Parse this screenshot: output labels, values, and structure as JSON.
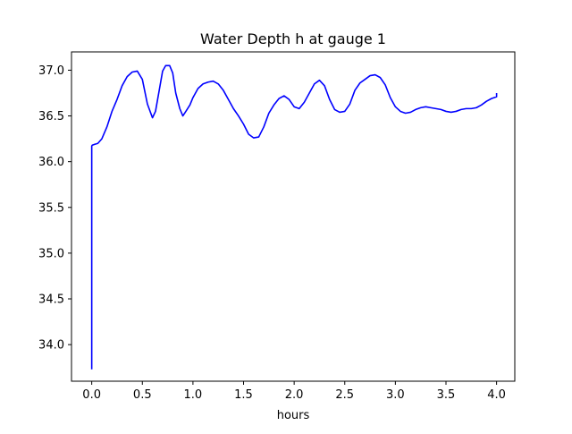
{
  "chart_data": {
    "type": "line",
    "title": "Water Depth h at gauge 1",
    "xlabel": "hours",
    "ylabel": "",
    "xlim": [
      -0.2,
      4.18
    ],
    "ylim": [
      33.6,
      37.2
    ],
    "xticks": [
      "0.0",
      "0.5",
      "1.0",
      "1.5",
      "2.0",
      "2.5",
      "3.0",
      "3.5",
      "4.0"
    ],
    "yticks": [
      "34.0",
      "34.5",
      "35.0",
      "35.5",
      "36.0",
      "36.5",
      "37.0"
    ],
    "grid": false,
    "series": [
      {
        "name": "",
        "color": "#0000ff",
        "x": [
          0.0,
          0.0,
          0.0,
          0.005,
          0.03,
          0.06,
          0.1,
          0.15,
          0.2,
          0.25,
          0.3,
          0.35,
          0.4,
          0.45,
          0.5,
          0.55,
          0.6,
          0.63,
          0.67,
          0.7,
          0.73,
          0.77,
          0.8,
          0.83,
          0.87,
          0.9,
          0.93,
          0.97,
          1.0,
          1.05,
          1.1,
          1.15,
          1.2,
          1.25,
          1.3,
          1.35,
          1.4,
          1.45,
          1.5,
          1.55,
          1.6,
          1.65,
          1.7,
          1.75,
          1.8,
          1.85,
          1.9,
          1.95,
          2.0,
          2.05,
          2.1,
          2.15,
          2.2,
          2.25,
          2.3,
          2.35,
          2.4,
          2.45,
          2.5,
          2.55,
          2.6,
          2.65,
          2.7,
          2.75,
          2.8,
          2.85,
          2.9,
          2.95,
          3.0,
          3.05,
          3.1,
          3.15,
          3.2,
          3.25,
          3.3,
          3.35,
          3.4,
          3.45,
          3.5,
          3.55,
          3.6,
          3.65,
          3.7,
          3.75,
          3.8,
          3.85,
          3.9,
          3.95,
          4.0,
          4.0
        ],
        "y": [
          33.73,
          34.8,
          36.17,
          36.18,
          36.19,
          36.2,
          36.25,
          36.38,
          36.55,
          36.68,
          36.83,
          36.93,
          36.98,
          36.99,
          36.9,
          36.63,
          36.48,
          36.55,
          36.8,
          36.99,
          37.05,
          37.05,
          36.97,
          36.75,
          36.58,
          36.5,
          36.55,
          36.62,
          36.7,
          36.8,
          36.85,
          36.87,
          36.88,
          36.85,
          36.78,
          36.68,
          36.58,
          36.5,
          36.41,
          36.3,
          36.26,
          36.27,
          36.38,
          36.53,
          36.62,
          36.69,
          36.72,
          36.68,
          36.6,
          36.58,
          36.65,
          36.75,
          36.85,
          36.89,
          36.83,
          36.68,
          36.57,
          36.54,
          36.55,
          36.63,
          36.78,
          36.86,
          36.9,
          36.94,
          36.95,
          36.92,
          36.84,
          36.7,
          36.6,
          36.55,
          36.53,
          36.54,
          36.57,
          36.59,
          36.6,
          36.59,
          36.58,
          36.57,
          36.55,
          36.54,
          36.55,
          36.57,
          36.58,
          36.58,
          36.59,
          36.62,
          36.66,
          36.69,
          36.71,
          36.75
        ]
      }
    ]
  }
}
